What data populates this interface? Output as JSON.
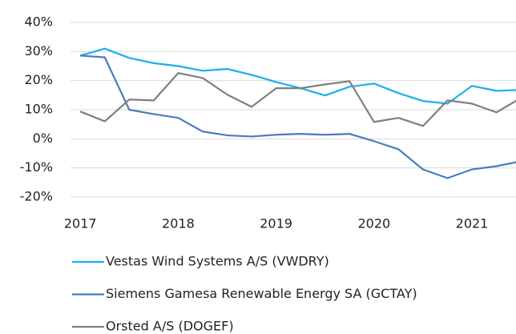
{
  "chart_data": {
    "type": "line",
    "x": [
      2017,
      2017.25,
      2017.5,
      2017.75,
      2018,
      2018.25,
      2018.5,
      2018.75,
      2019,
      2019.25,
      2019.5,
      2019.75,
      2020,
      2020.25,
      2020.5,
      2020.75,
      2021,
      2021.25,
      2021.5
    ],
    "series": [
      {
        "name": "Vestas Wind Systems A/S (VWDRY)",
        "color": "#1ab0e8",
        "values": [
          28.6,
          31,
          27.8,
          26,
          25,
          23.4,
          24,
          22,
          19.5,
          17.4,
          14.9,
          17.9,
          19,
          15.7,
          13,
          12.1,
          18.2,
          16.5,
          16.8
        ]
      },
      {
        "name": "Siemens Gamesa Renewable Energy SA (GCTAY)",
        "color": "#4a7cc0",
        "values": [
          28.6,
          28,
          10,
          8.5,
          7.2,
          2.5,
          1.2,
          0.8,
          1.4,
          1.7,
          1.4,
          1.7,
          -0.8,
          -3.6,
          -10.5,
          -13.5,
          -10.5,
          -9.4,
          -7.7
        ]
      },
      {
        "name": "Orsted A/S (DOGEF)",
        "color": "#7f7f7f",
        "values": [
          9.4,
          6,
          13.5,
          13.2,
          22.6,
          20.9,
          15.2,
          11,
          17.4,
          17.4,
          18.7,
          19.8,
          5.8,
          7.2,
          4.4,
          13.2,
          12.1,
          9.1,
          14
        ]
      }
    ],
    "xlim": [
      2016.9,
      2021.45
    ],
    "xticks": [
      2017,
      2018,
      2019,
      2020,
      2021
    ],
    "ylim": [
      -20,
      40
    ],
    "yticks": [
      {
        "value": -20,
        "label": "-20%"
      },
      {
        "value": -10,
        "label": "-10%"
      },
      {
        "value": 0,
        "label": "0%"
      },
      {
        "value": 10,
        "label": "10%"
      },
      {
        "value": 20,
        "label": "20%"
      },
      {
        "value": 30,
        "label": "30%"
      },
      {
        "value": 40,
        "label": "40%"
      }
    ],
    "grid": true,
    "legend": "bottom"
  }
}
